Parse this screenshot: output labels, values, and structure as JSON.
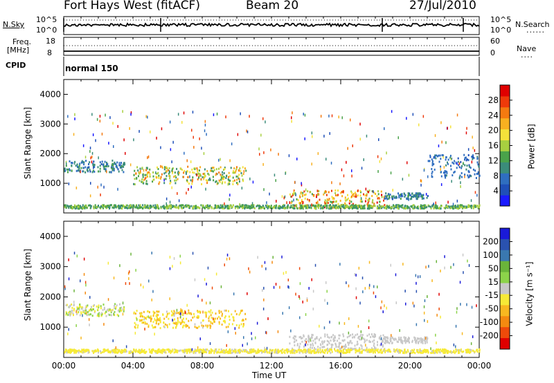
{
  "header": {
    "station": "Fort Hays West (fitACF)",
    "beam": "Beam 20",
    "date": "27/Jul/2010"
  },
  "top_panels": {
    "nsky_label": "N.Sky",
    "nsky_ticks": [
      "10^5",
      "10^0"
    ],
    "nsearch_label": "N.Search",
    "nsearch_ticks": [
      "10^5",
      "10^0"
    ],
    "freq_label": "Freq.",
    "freq_unit": "[MHz]",
    "freq_ticks": [
      "18",
      "8"
    ],
    "nave_label": "Nave",
    "nave_ticks": [
      "60",
      "0"
    ],
    "cpid_label": "CPID",
    "cpid_value": "normal 150"
  },
  "chart_data": [
    {
      "type": "heatmap",
      "panel": "power",
      "xlabel": "",
      "ylabel": "Slant Range [km]",
      "xlim": [
        "00:00",
        "24:00"
      ],
      "ylim": [
        0,
        4500
      ],
      "yticks": [
        1000,
        2000,
        3000,
        4000
      ],
      "colorbar": {
        "label": "Power [dB]",
        "ticks": [
          "4",
          "8",
          "12",
          "16",
          "20",
          "24",
          "28"
        ],
        "colors": [
          "#1a1aff",
          "#1f4fb8",
          "#2f6ec0",
          "#3b8c7a",
          "#4aa24a",
          "#a8d040",
          "#f4e23a",
          "#f8b020",
          "#f47a10",
          "#ee3a0a",
          "#e00000"
        ]
      },
      "echo_regions": [
        {
          "t_start": 0.0,
          "t_end": 3.5,
          "range_km": [
            1400,
            1800
          ],
          "power_db": [
            4,
            12
          ]
        },
        {
          "t_start": 4.0,
          "t_end": 10.5,
          "range_km": [
            1000,
            1600
          ],
          "power_db": [
            8,
            24
          ]
        },
        {
          "t_start": 13.0,
          "t_end": 18.5,
          "range_km": [
            200,
            800
          ],
          "power_db": [
            12,
            30
          ]
        },
        {
          "t_start": 18.5,
          "t_end": 21.0,
          "range_km": [
            500,
            700
          ],
          "power_db": [
            4,
            12
          ]
        },
        {
          "t_start": 21.0,
          "t_end": 24.0,
          "range_km": [
            1200,
            2000
          ],
          "power_db": [
            4,
            8
          ]
        },
        {
          "t_start": 0.0,
          "t_end": 24.0,
          "range_km": [
            180,
            300
          ],
          "power_db": [
            8,
            16
          ]
        }
      ]
    },
    {
      "type": "heatmap",
      "panel": "velocity",
      "xlabel": "Time UT",
      "ylabel": "Slant Range [km]",
      "xlim": [
        "00:00",
        "24:00"
      ],
      "xticks": [
        "00:00",
        "04:00",
        "08:00",
        "12:00",
        "16:00",
        "20:00",
        "00:00"
      ],
      "ylim": [
        0,
        4500
      ],
      "yticks": [
        1000,
        2000,
        3000,
        4000
      ],
      "colorbar": {
        "label": "Velocity [m s⁻¹]",
        "ticks": [
          "200",
          "100",
          "50",
          "15",
          "-15",
          "-50",
          "-100",
          "-200"
        ],
        "colors": [
          "#1a1ad8",
          "#2a52b0",
          "#3a78b0",
          "#6ab43a",
          "#8cd34a",
          "#c8c8c8",
          "#f6ea36",
          "#f8b820",
          "#f48a10",
          "#ee4a0a",
          "#e00000"
        ]
      },
      "echo_regions": [
        {
          "t_start": 0.0,
          "t_end": 3.5,
          "range_km": [
            1400,
            1800
          ],
          "velocity": [
            -50,
            50
          ]
        },
        {
          "t_start": 4.0,
          "t_end": 10.5,
          "range_km": [
            1000,
            1600
          ],
          "velocity": [
            -100,
            -15
          ]
        },
        {
          "t_start": 13.0,
          "t_end": 18.5,
          "range_km": [
            300,
            800
          ],
          "velocity": [
            -15,
            15
          ]
        },
        {
          "t_start": 18.5,
          "t_end": 21.0,
          "range_km": [
            500,
            700
          ],
          "velocity": [
            -15,
            15
          ]
        },
        {
          "t_start": 0.0,
          "t_end": 24.0,
          "range_km": [
            180,
            300
          ],
          "velocity": [
            -50,
            -15
          ]
        }
      ]
    }
  ]
}
